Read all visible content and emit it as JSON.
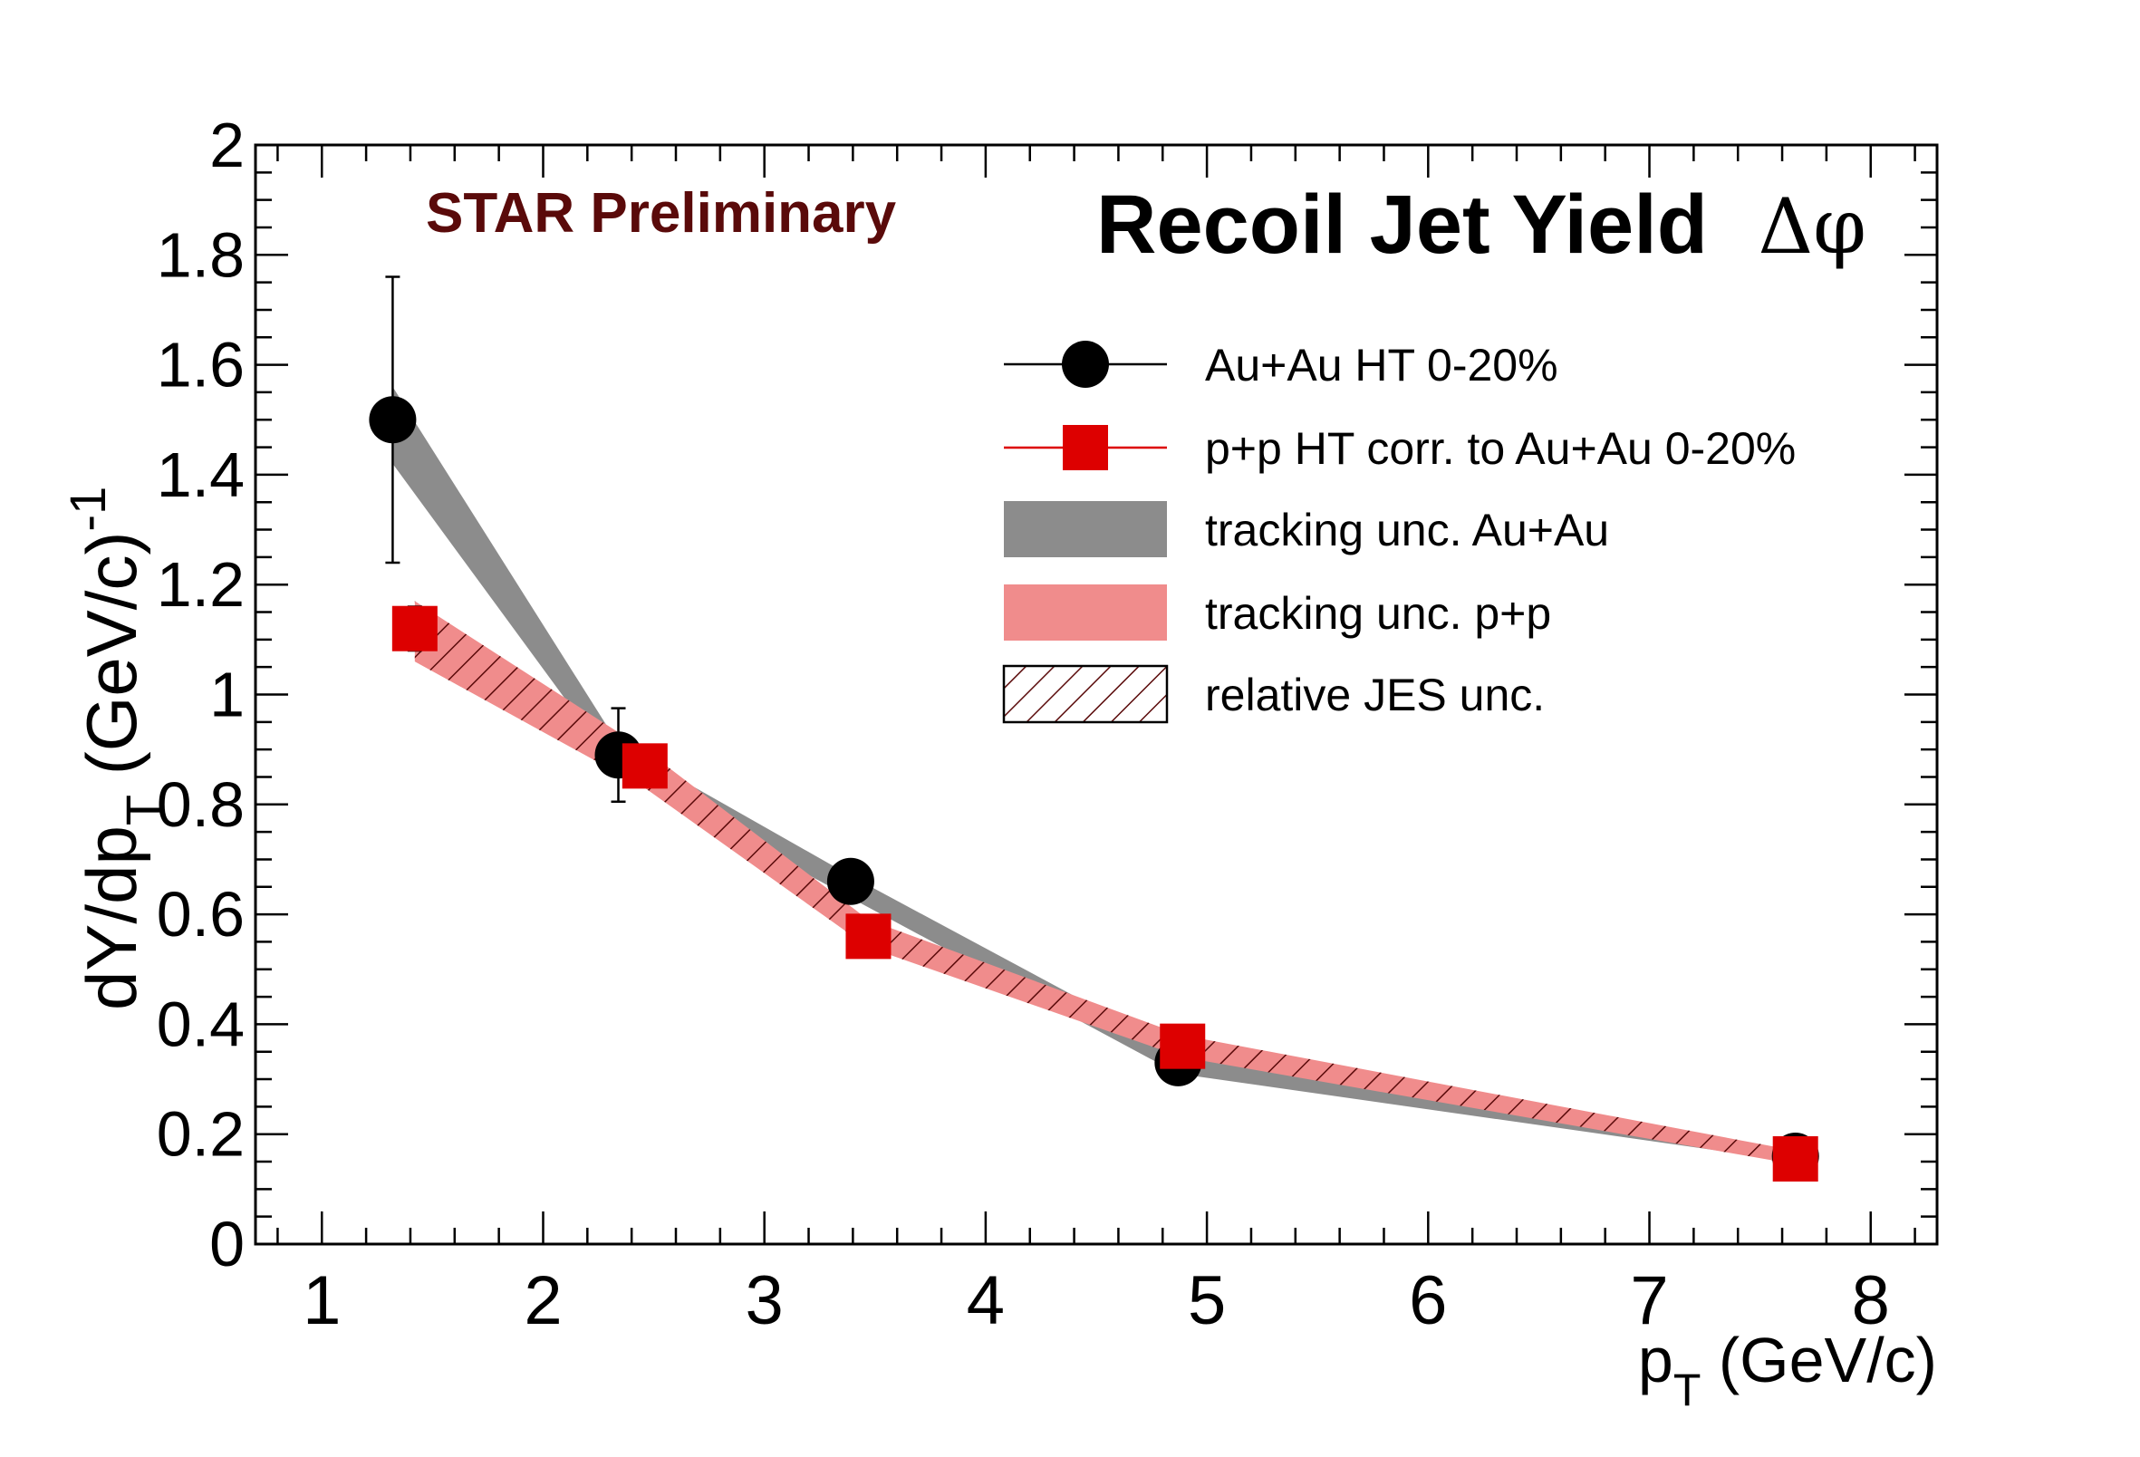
{
  "chart_data": {
    "type": "scatter",
    "title": "Recoil Jet Yield",
    "title_symbol": "Δφ",
    "watermark": "STAR Preliminary",
    "xlabel": {
      "main": "p",
      "sub": "T",
      "rest": " (GeV/c)"
    },
    "ylabel": {
      "part1": "dY/dp",
      "sub": "T",
      "part2": "  (GeV/c)",
      "sup": "-1"
    },
    "xlim": [
      0.7,
      8.3
    ],
    "ylim": [
      0,
      2
    ],
    "xticks": [
      1,
      2,
      3,
      4,
      5,
      6,
      7,
      8
    ],
    "yticks": [
      0,
      0.2,
      0.4,
      0.6,
      0.8,
      1,
      1.2,
      1.4,
      1.6,
      1.8,
      2
    ],
    "ytick_labels": [
      "0",
      "0.2",
      "0.4",
      "0.6",
      "0.8",
      "1",
      "1.2",
      "1.4",
      "1.6",
      "1.8",
      "2"
    ],
    "grid": false,
    "legend_position": "top-right",
    "series": [
      {
        "name": "Au+Au HT 0-20%",
        "marker": "circle",
        "color": "#000000",
        "x": [
          1.32,
          2.34,
          3.39,
          4.87,
          7.66
        ],
        "y": [
          1.5,
          0.89,
          0.66,
          0.33,
          0.16
        ],
        "yerr": [
          0.26,
          0.085,
          0.02,
          0.01,
          0.01
        ],
        "band_low": [
          1.42,
          0.86,
          0.63,
          0.31,
          0.15
        ],
        "band_high": [
          1.56,
          0.91,
          0.67,
          0.35,
          0.17
        ]
      },
      {
        "name": "p+p HT corr. to Au+Au 0-20%",
        "marker": "square",
        "color": "#dd0000",
        "x": [
          1.42,
          2.46,
          3.47,
          4.89,
          7.66
        ],
        "y": [
          1.12,
          0.87,
          0.56,
          0.36,
          0.155
        ],
        "yerr": [
          0.04,
          0.02,
          0.01,
          0.01,
          0.01
        ],
        "band_low": [
          1.06,
          0.83,
          0.54,
          0.34,
          0.145
        ],
        "band_high": [
          1.17,
          0.9,
          0.59,
          0.38,
          0.17
        ]
      }
    ],
    "legend": [
      {
        "label": "Au+Au HT 0-20%",
        "kind": "circle"
      },
      {
        "label": "p+p HT corr. to Au+Au 0-20%",
        "kind": "square"
      },
      {
        "label": "tracking unc. Au+Au",
        "kind": "band-gray"
      },
      {
        "label": "tracking unc. p+p",
        "kind": "band-pink"
      },
      {
        "label": "relative JES unc.",
        "kind": "hatch"
      }
    ],
    "colors": {
      "watermark": "#5a0a0a",
      "band_gray": "#8c8c8c",
      "band_pink": "#f08c8c",
      "hatch": "#5a0a0a",
      "frame": "#000000"
    }
  }
}
